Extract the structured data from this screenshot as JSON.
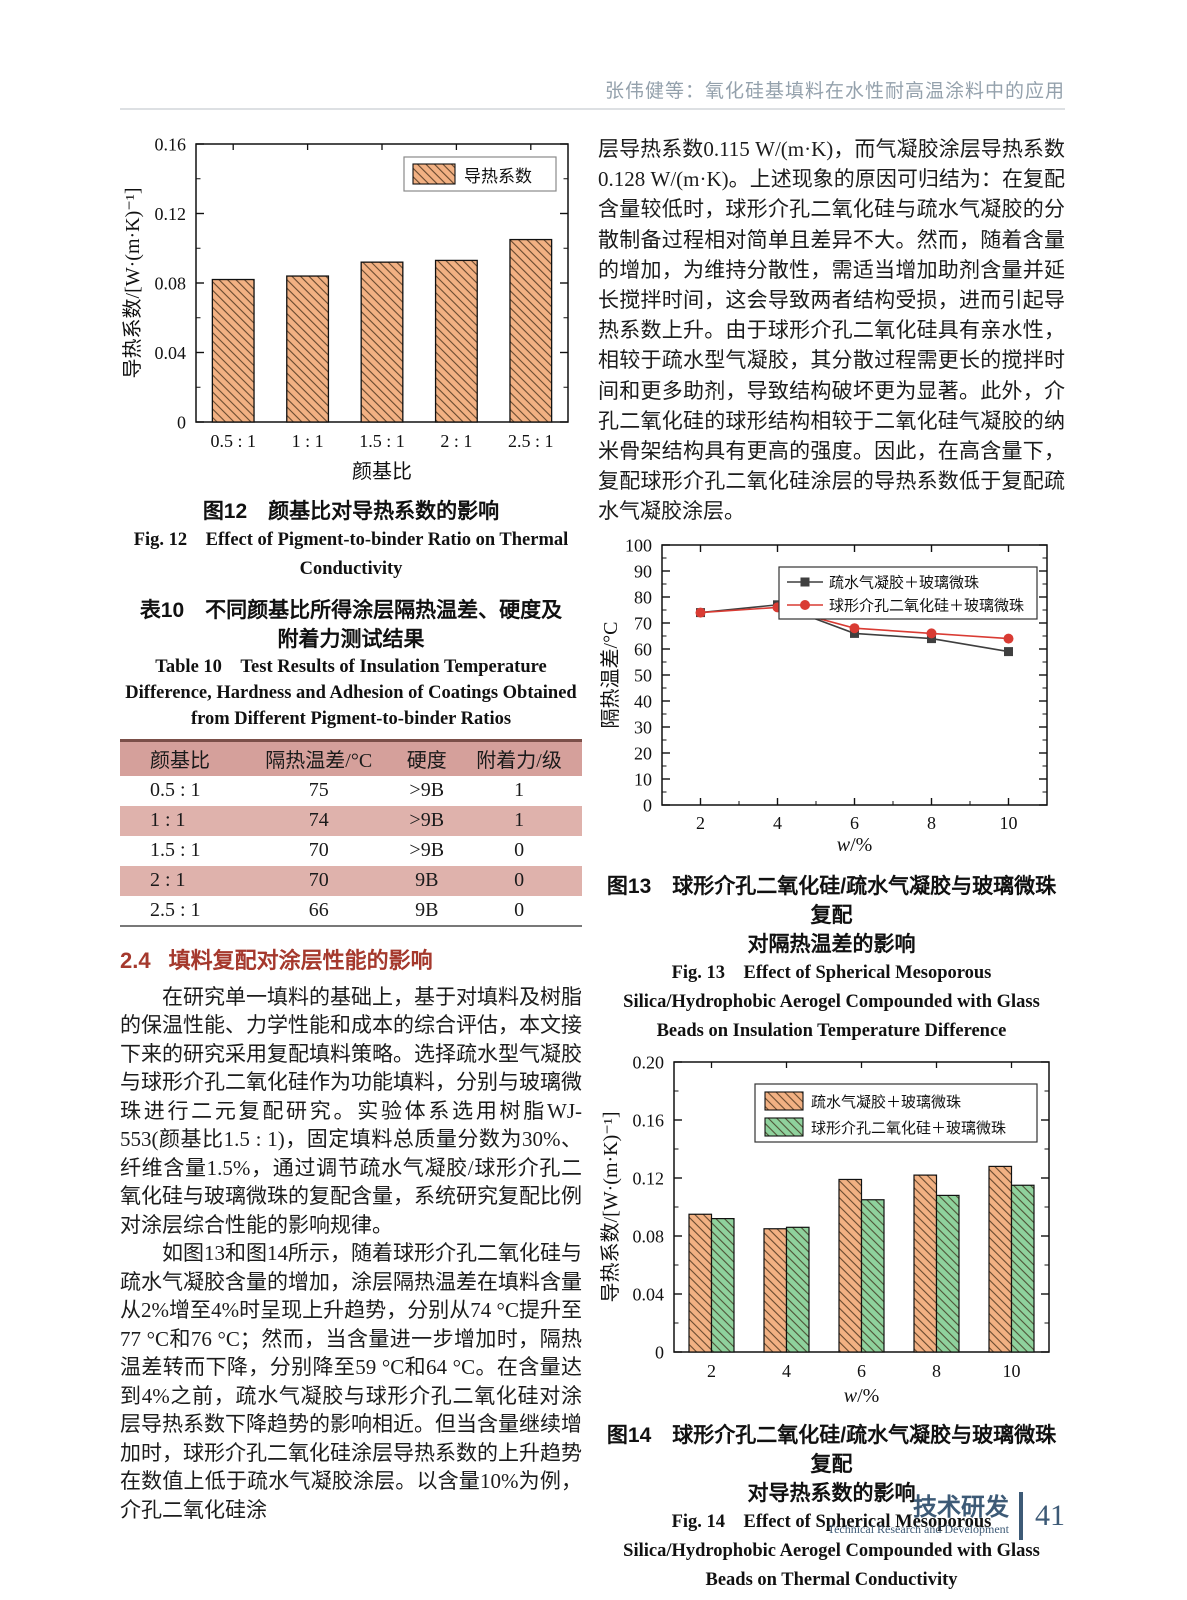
{
  "page": {
    "header": "张伟健等：氧化硅基填料在水性耐高温涂料中的应用",
    "footer": {
      "section_zh": "技术研发",
      "section_en": "Technical Research and Development",
      "page_number": "41"
    }
  },
  "sections": {
    "s24": {
      "number": "2.4",
      "title": "填料复配对涂层性能的影响"
    }
  },
  "left_column": {
    "paragraphs": [
      "在研究单一填料的基础上，基于对填料及树脂的保温性能、力学性能和成本的综合评估，本文接下来的研究采用复配填料策略。选择疏水型气凝胶与球形介孔二氧化硅作为功能填料，分别与玻璃微珠进行二元复配研究。实验体系选用树脂WJ-553(颜基比1.5 : 1)，固定填料总质量分数为30%、纤维含量1.5%，通过调节疏水气凝胶/球形介孔二氧化硅与玻璃微珠的复配含量，系统研究复配比例对涂层综合性能的影响规律。",
      "如图13和图14所示，随着球形介孔二氧化硅与疏水气凝胶含量的增加，涂层隔热温差在填料含量从2%增至4%时呈现上升趋势，分别从74 °C提升至77 °C和76 °C；然而，当含量进一步增加时，隔热温差转而下降，分别降至59 °C和64 °C。在含量达到4%之前，疏水气凝胶与球形介孔二氧化硅对涂层导热系数下降趋势的影响相近。但当含量继续增加时，球形介孔二氧化硅涂层导热系数的上升趋势在数值上低于疏水气凝胶涂层。以含量10%为例，介孔二氧化硅涂"
    ]
  },
  "right_column": {
    "paragraphs": [
      "层导热系数0.115 W/(m·K)，而气凝胶涂层导热系数0.128 W/(m·K)。上述现象的原因可归结为：在复配含量较低时，球形介孔二氧化硅与疏水气凝胶的分散制备过程相对简单且差异不大。然而，随着含量的增加，为维持分散性，需适当增加助剂含量并延长搅拌时间，这会导致两者结构受损，进而引起导热系数上升。由于球形介孔二氧化硅具有亲水性，相较于疏水型气凝胶，其分散过程需更长的搅拌时间和更多助剂，导致结构破坏更为显著。此外，介孔二氧化硅的球形结构相较于二氧化硅气凝胶的纳米骨架结构具有更高的强度。因此，在高含量下，复配球形介孔二氧化硅涂层的导热系数低于复配疏水气凝胶涂层。"
    ]
  },
  "figures": {
    "fig12": {
      "caption_zh": "图12　颜基比对导热系数的影响",
      "caption_en": "Fig. 12　Effect of Pigment-to-binder Ratio on Thermal Conductivity"
    },
    "fig13": {
      "caption_zh_1": "图13　球形介孔二氧化硅/疏水气凝胶与玻璃微珠复配",
      "caption_zh_2": "对隔热温差的影响",
      "caption_en": "Fig. 13　Effect of Spherical Mesoporous Silica/Hydrophobic Aerogel Compounded with Glass Beads on Insulation Temperature Difference"
    },
    "fig14": {
      "caption_zh_1": "图14　球形介孔二氧化硅/疏水气凝胶与玻璃微珠复配",
      "caption_zh_2": "对导热系数的影响",
      "caption_en": "Fig. 14　Effect of Spherical Mesoporous Silica/Hydrophobic Aerogel Compounded with Glass Beads on Thermal Conductivity"
    }
  },
  "table10": {
    "caption_zh_1": "表10　不同颜基比所得涂层隔热温差、硬度及",
    "caption_zh_2": "附着力测试结果",
    "caption_en": "Table 10　Test Results of Insulation Temperature Difference, Hardness and Adhesion of Coatings Obtained from Different Pigment-to-binder Ratios",
    "headers": [
      "颜基比",
      "隔热温差/°C",
      "硬度",
      "附着力/级"
    ],
    "rows": [
      [
        "0.5 : 1",
        "75",
        ">9B",
        "1"
      ],
      [
        "1 : 1",
        "74",
        ">9B",
        "1"
      ],
      [
        "1.5 : 1",
        "70",
        ">9B",
        "0"
      ],
      [
        "2 : 1",
        "70",
        "9B",
        "0"
      ],
      [
        "2.5 : 1",
        "66",
        "9B",
        "0"
      ]
    ]
  },
  "chart_data": [
    {
      "id": "fig12",
      "type": "bar",
      "categories": [
        "0.5 : 1",
        "1 : 1",
        "1.5 : 1",
        "2 : 1",
        "2.5 : 1"
      ],
      "values": [
        0.082,
        0.084,
        0.092,
        0.093,
        0.105
      ],
      "legend": "导热系数",
      "xlabel": "颜基比",
      "ylabel": "导热系数/[W·(m·K)⁻¹]",
      "ylim": [
        0,
        0.16
      ],
      "yticks": [
        "0",
        "0.04",
        "0.08",
        "0.12",
        "0.16"
      ],
      "bar_fill": "#f2b183",
      "grid": "off",
      "legend_position": "top-right"
    },
    {
      "id": "fig13",
      "type": "line",
      "x": [
        2,
        4,
        6,
        8,
        10
      ],
      "xlim": [
        1,
        11
      ],
      "series": [
        {
          "name": "疏水气凝胶＋玻璃微珠",
          "values": [
            74,
            77,
            66,
            64,
            59
          ],
          "color": "#3f3f3f",
          "marker": "square"
        },
        {
          "name": "球形介孔二氧化硅＋玻璃微珠",
          "values": [
            74,
            76,
            68,
            66,
            64
          ],
          "color": "#d93b33",
          "marker": "circle"
        }
      ],
      "xlabel": "w/%",
      "ylabel": "隔热温差/°C",
      "ylim": [
        0,
        100
      ],
      "yticks": [
        "0",
        "10",
        "20",
        "30",
        "40",
        "50",
        "60",
        "70",
        "80",
        "90",
        "100"
      ],
      "grid": "off",
      "legend_position": "top-right"
    },
    {
      "id": "fig14",
      "type": "grouped-bar",
      "categories": [
        "2",
        "4",
        "6",
        "8",
        "10"
      ],
      "series": [
        {
          "name": "疏水气凝胶＋玻璃微珠",
          "values": [
            0.095,
            0.085,
            0.119,
            0.122,
            0.128
          ],
          "fill": "#f2b183"
        },
        {
          "name": "球形介孔二氧化硅＋玻璃微珠",
          "values": [
            0.092,
            0.086,
            0.105,
            0.108,
            0.115
          ],
          "fill": "#8fd29d"
        }
      ],
      "xlabel": "w/%",
      "ylabel": "导热系数/[W·(m·K)⁻¹]",
      "ylim": [
        0,
        0.2
      ],
      "yticks": [
        "0",
        "0.04",
        "0.08",
        "0.12",
        "0.16",
        "0.20"
      ],
      "grid": "off",
      "legend_position": "top-right"
    }
  ]
}
